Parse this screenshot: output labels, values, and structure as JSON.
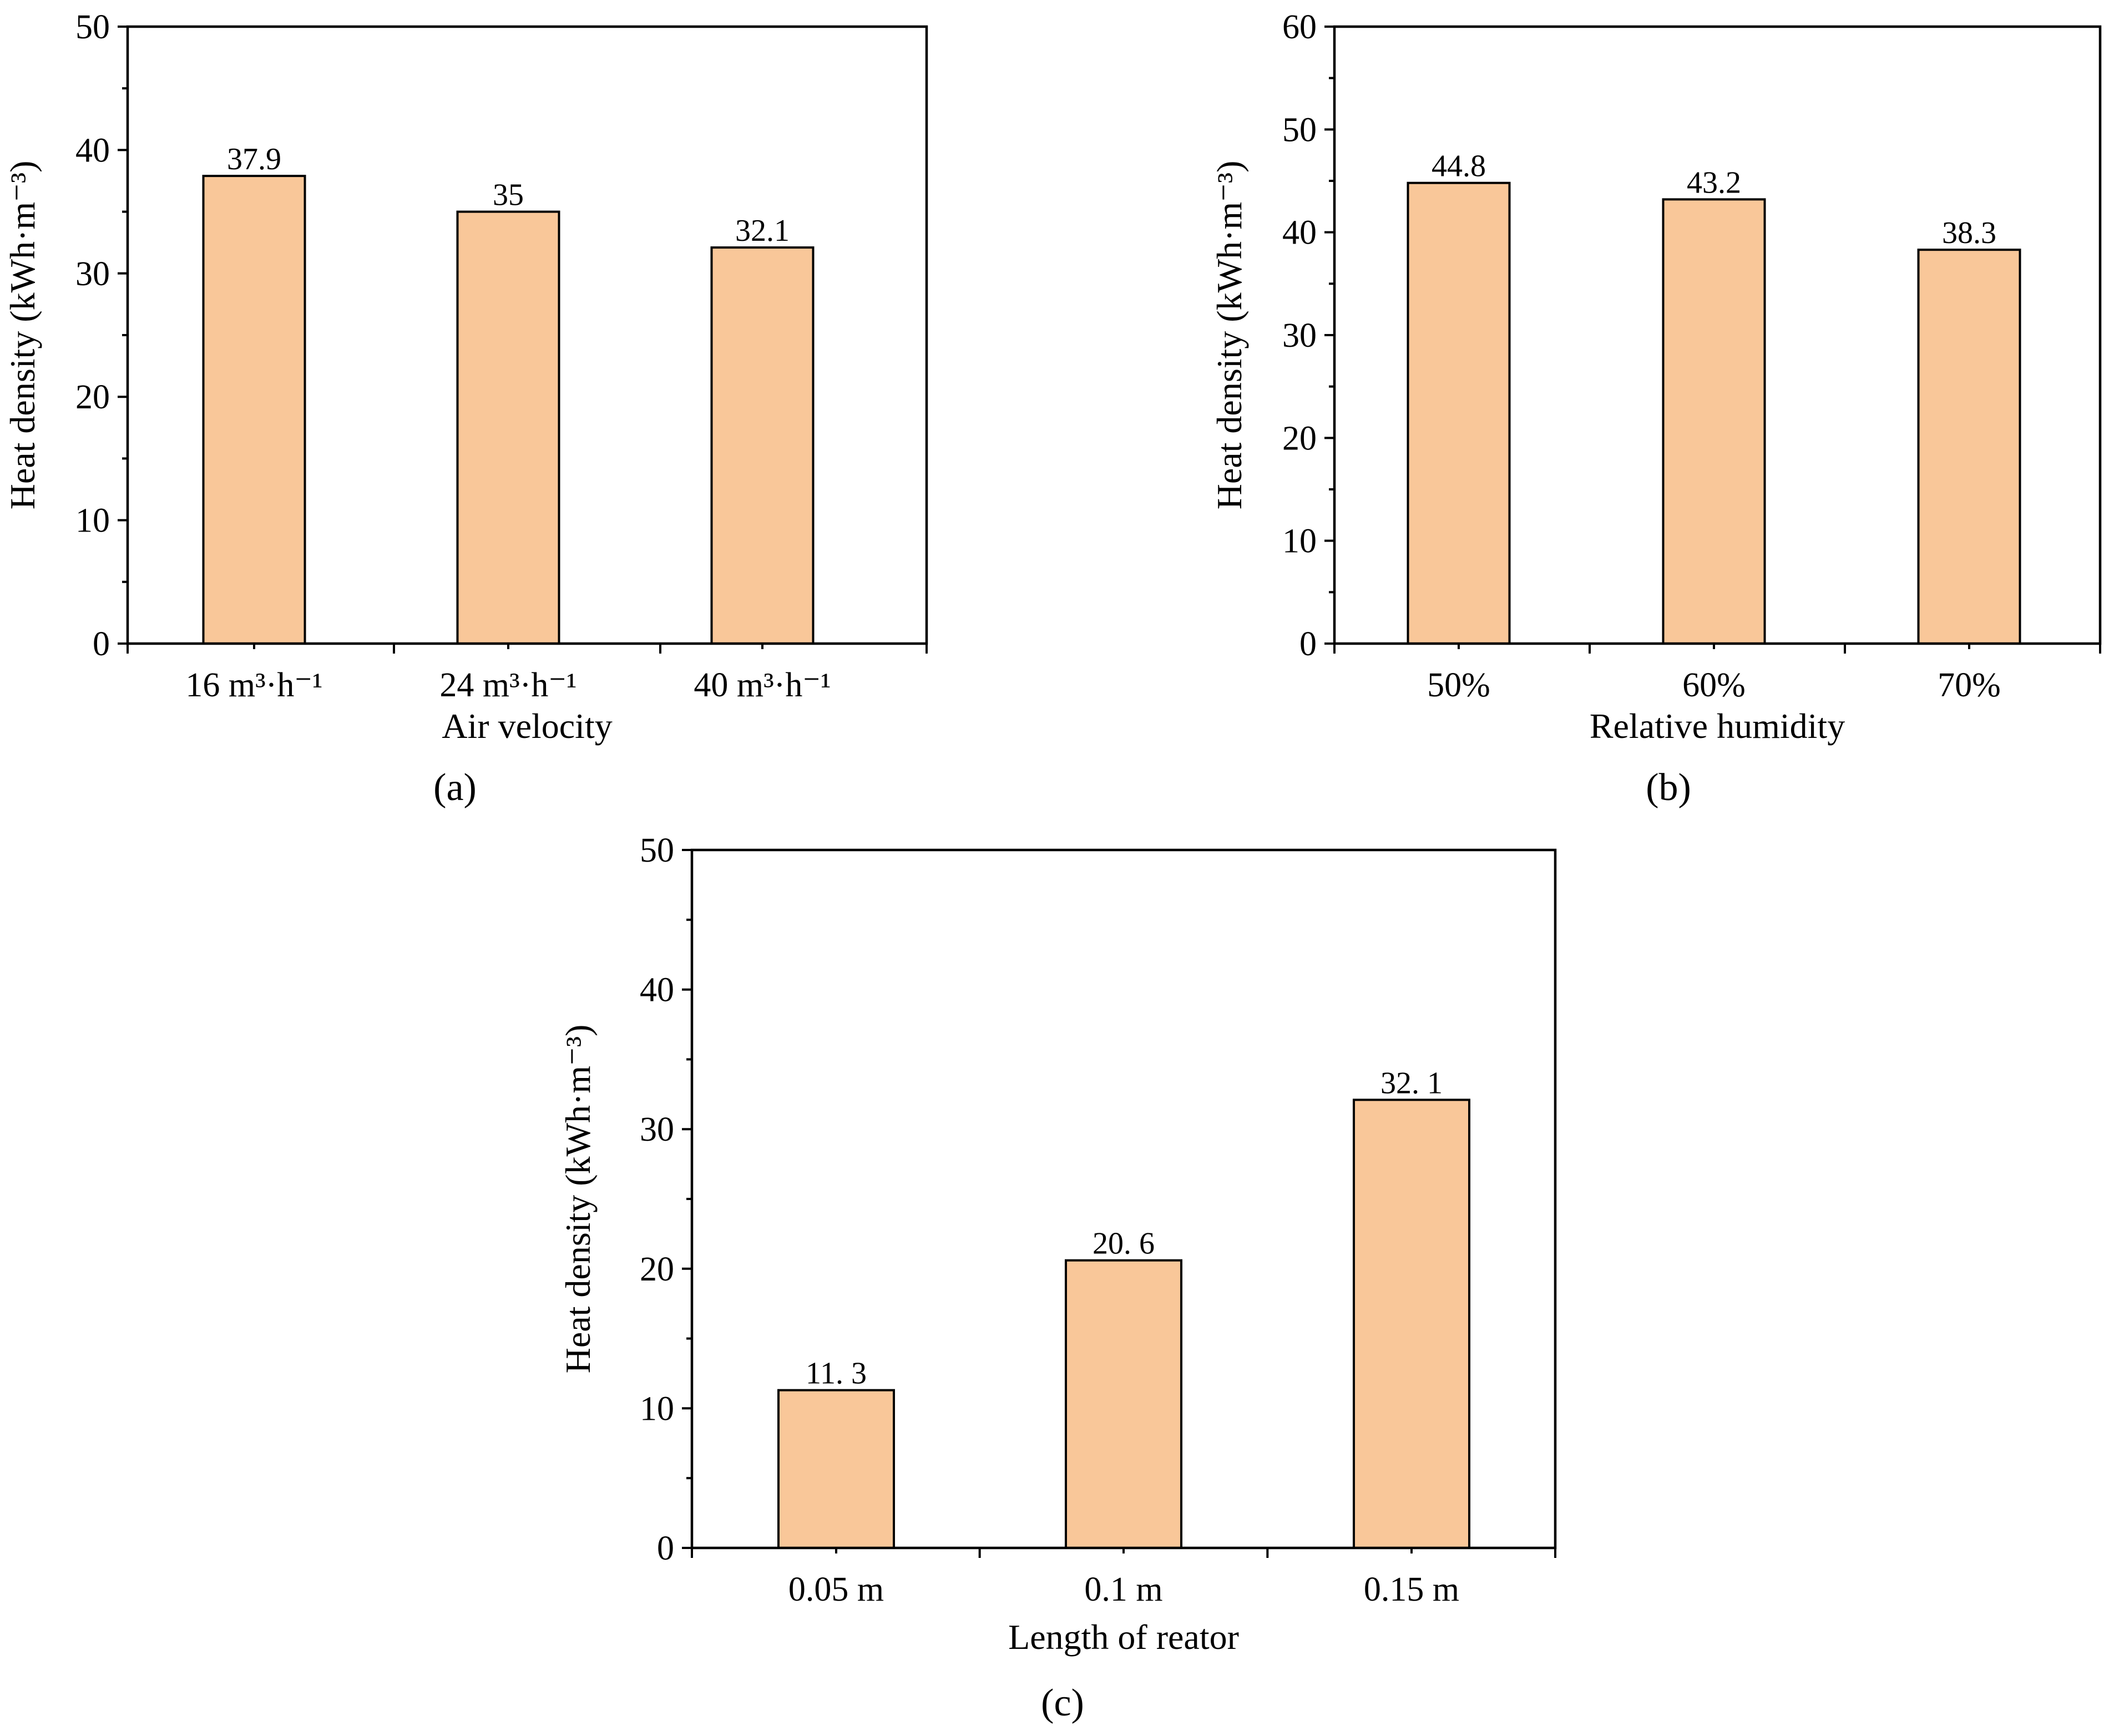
{
  "chart_data": [
    {
      "type": "bar",
      "panel": "a",
      "categories": [
        "16 m³·h⁻¹",
        "24 m³·h⁻¹",
        "40 m³·h⁻¹"
      ],
      "values": [
        37.9,
        35,
        32.1
      ],
      "value_labels": [
        "37.9",
        "35",
        "32.1"
      ],
      "xlabel": "Air velocity",
      "ylabel": "Heat density (kWh·m⁻³)",
      "ylim": [
        0,
        50
      ],
      "yticks": [
        0,
        10,
        20,
        30,
        40,
        50
      ],
      "ytick_labels": [
        "0",
        "10",
        "20",
        "30",
        "40",
        "50"
      ],
      "bar_color": "#F9C799"
    },
    {
      "type": "bar",
      "panel": "b",
      "categories": [
        "50%",
        "60%",
        "70%"
      ],
      "values": [
        44.8,
        43.2,
        38.3
      ],
      "value_labels": [
        "44.8",
        "43.2",
        "38.3"
      ],
      "xlabel": "Relative humidity",
      "ylabel": "Heat density (kWh·m⁻³)",
      "ylim": [
        0,
        60
      ],
      "yticks": [
        0,
        10,
        20,
        30,
        40,
        50,
        60
      ],
      "ytick_labels": [
        "0",
        "10",
        "20",
        "30",
        "40",
        "50",
        "60"
      ],
      "bar_color": "#F9C799"
    },
    {
      "type": "bar",
      "panel": "c",
      "categories": [
        "0.05 m",
        "0.1 m",
        "0.15 m"
      ],
      "values": [
        11.3,
        20.6,
        32.1
      ],
      "value_labels": [
        "11. 3",
        "20. 6",
        "32. 1"
      ],
      "xlabel": "Length of reator",
      "ylabel": "Heat density (kWh·m⁻³)",
      "ylim": [
        0,
        50
      ],
      "yticks": [
        0,
        10,
        20,
        30,
        40,
        50
      ],
      "ytick_labels": [
        "0",
        "10",
        "20",
        "30",
        "40",
        "50"
      ],
      "bar_color": "#F9C799"
    }
  ],
  "panel_labels": [
    "(a)",
    "(b)",
    "(c)"
  ]
}
